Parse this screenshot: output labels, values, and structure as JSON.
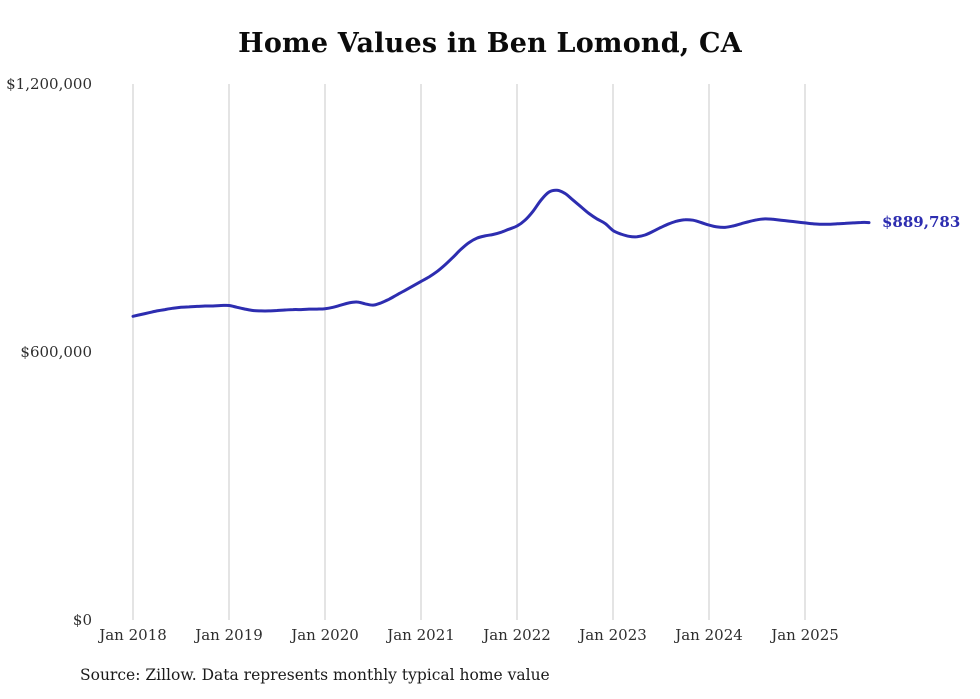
{
  "title": "Home Values in Ben Lomond, CA",
  "source_note": "Source: Zillow. Data represents monthly typical home value",
  "end_label": "$889,783",
  "colors": {
    "line": "#2d2db0",
    "grid": "#c9c9c9",
    "tick_text": "#2e2e2e",
    "title_text": "#0b0b0b",
    "end_label": "#2d2db0"
  },
  "chart_data": {
    "type": "line",
    "title": "Home Values in Ben Lomond, CA",
    "series_name": "Typical home value",
    "frequency": "monthly",
    "x_start": "Jan 2018",
    "x_end": "Sep 2025",
    "values": [
      680000,
      684000,
      688000,
      692000,
      695000,
      698000,
      700000,
      701000,
      702000,
      703000,
      703000,
      704000,
      704000,
      700000,
      696000,
      693000,
      692000,
      692000,
      693000,
      694000,
      695000,
      695000,
      696000,
      696000,
      697000,
      700000,
      705000,
      710000,
      712000,
      708000,
      705000,
      710000,
      718000,
      728000,
      738000,
      748000,
      758000,
      768000,
      780000,
      795000,
      812000,
      830000,
      845000,
      855000,
      860000,
      863000,
      868000,
      875000,
      882000,
      895000,
      915000,
      940000,
      958000,
      962000,
      955000,
      940000,
      925000,
      910000,
      898000,
      888000,
      872000,
      864000,
      859000,
      858000,
      862000,
      870000,
      879000,
      887000,
      893000,
      896000,
      895000,
      890000,
      884000,
      880000,
      879000,
      882000,
      887000,
      892000,
      896000,
      898000,
      897000,
      895000,
      893000,
      891000,
      889000,
      887000,
      886000,
      886000,
      887000,
      888000,
      889000,
      890000,
      889783
    ],
    "x_tick_labels": [
      "Jan 2018",
      "Jan 2019",
      "Jan 2020",
      "Jan 2021",
      "Jan 2022",
      "Jan 2023",
      "Jan 2024",
      "Jan 2025"
    ],
    "y_ticks": [
      0,
      600000,
      1200000
    ],
    "y_tick_labels": [
      "$0",
      "$600,000",
      "$1,200,000"
    ],
    "ylim": [
      0,
      1200000
    ],
    "grid": "vertical",
    "legend": "none",
    "latest_value": 889783,
    "latest_value_label": "$889,783"
  }
}
